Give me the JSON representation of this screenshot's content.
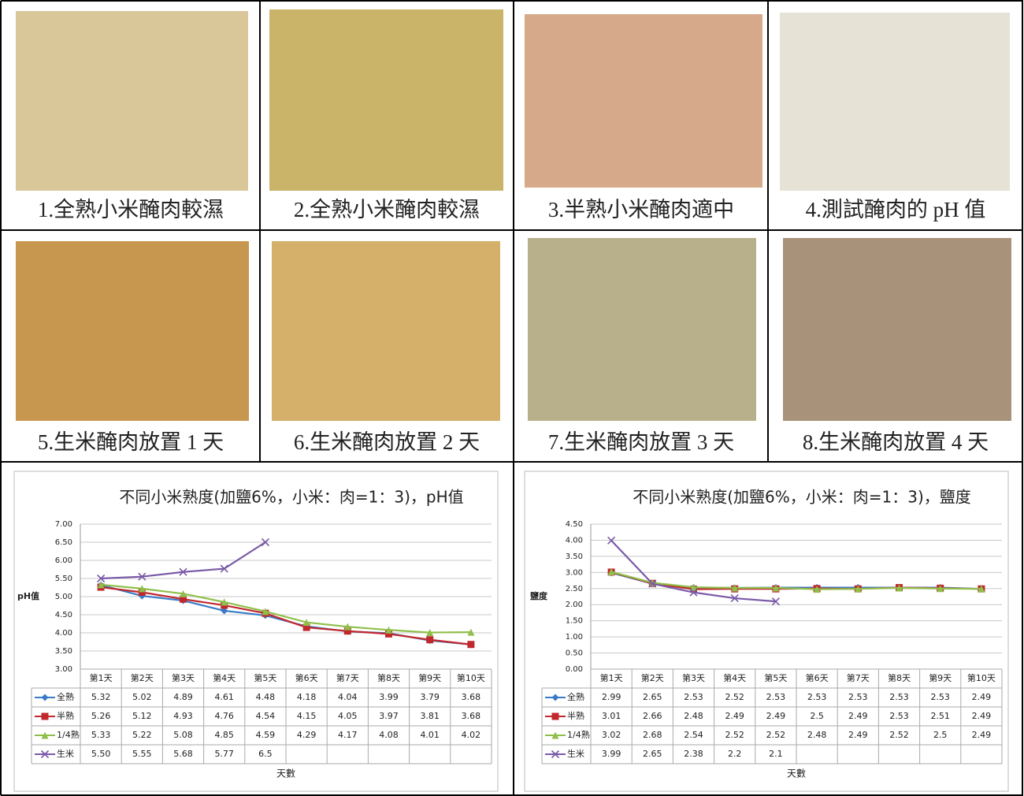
{
  "photos": [
    {
      "caption": "1.全熟小米醃肉較濕"
    },
    {
      "caption": "2.全熟小米醃肉較濕"
    },
    {
      "caption": "3.半熟小米醃肉適中"
    },
    {
      "caption": "4.測試醃肉的 pH 值"
    },
    {
      "caption": "5.生米醃肉放置 1 天"
    },
    {
      "caption": "6.生米醃肉放置 2 天"
    },
    {
      "caption": "7.生米醃肉放置 3 天"
    },
    {
      "caption": "8.生米醃肉放置 4 天"
    }
  ],
  "chart_data": [
    {
      "type": "line",
      "title": "不同小米熟度(加鹽6%，小米：肉=1：3)，pH值",
      "y_label": "pH值",
      "x_label": "天數",
      "categories": [
        "第1天",
        "第2天",
        "第3天",
        "第4天",
        "第5天",
        "第6天",
        "第7天",
        "第8天",
        "第9天",
        "第10天"
      ],
      "ylim": [
        3,
        7
      ],
      "yticks": [
        {
          "value": 3,
          "label": "3.00"
        },
        {
          "value": 3.5,
          "label": "3.50"
        },
        {
          "value": 4,
          "label": "4.00"
        },
        {
          "value": 4.5,
          "label": "4.50"
        },
        {
          "value": 5,
          "label": "5.00"
        },
        {
          "value": 5.5,
          "label": "5.50"
        },
        {
          "value": 6,
          "label": "6.00"
        },
        {
          "value": 6.5,
          "label": "6.50"
        },
        {
          "value": 7,
          "label": "7.00"
        }
      ],
      "grid": true,
      "series": [
        {
          "name": "全熟",
          "color": "#3a7bc8",
          "marker": "diamond",
          "values": [
            5.32,
            5.02,
            4.89,
            4.61,
            4.48,
            4.18,
            4.04,
            3.99,
            3.79,
            3.68
          ]
        },
        {
          "name": "半熟",
          "color": "#c0282d",
          "marker": "square",
          "values": [
            5.26,
            5.12,
            4.93,
            4.76,
            4.54,
            4.15,
            4.05,
            3.97,
            3.81,
            3.68
          ]
        },
        {
          "name": "1/4熟",
          "color": "#8fbf4a",
          "marker": "triangle",
          "values": [
            5.33,
            5.22,
            5.08,
            4.85,
            4.59,
            4.29,
            4.17,
            4.08,
            4.01,
            4.02
          ]
        },
        {
          "name": "生米",
          "color": "#7a5aa8",
          "marker": "x",
          "values": [
            5.5,
            5.55,
            5.68,
            5.77,
            6.5,
            null,
            null,
            null,
            null,
            null
          ],
          "value_labels": [
            "5.50",
            "5.55",
            "5.68",
            "5.77",
            "6.5",
            null,
            null,
            null,
            null,
            null
          ]
        }
      ]
    },
    {
      "type": "line",
      "title": "不同小米熟度(加鹽6%，小米：肉=1：3)，鹽度",
      "y_label": "鹽度",
      "x_label": "天數",
      "categories": [
        "第1天",
        "第2天",
        "第3天",
        "第4天",
        "第5天",
        "第6天",
        "第7天",
        "第8天",
        "第9天",
        "第10天"
      ],
      "ylim": [
        0,
        4.5
      ],
      "yticks": [
        {
          "value": 0,
          "label": "0.00"
        },
        {
          "value": 0.5,
          "label": "0.50"
        },
        {
          "value": 1,
          "label": "1.00"
        },
        {
          "value": 1.5,
          "label": "1.50"
        },
        {
          "value": 2,
          "label": "2.00"
        },
        {
          "value": 2.5,
          "label": "2.50"
        },
        {
          "value": 3,
          "label": "3.00"
        },
        {
          "value": 3.5,
          "label": "3.50"
        },
        {
          "value": 4,
          "label": "4.00"
        },
        {
          "value": 4.5,
          "label": "4.50"
        }
      ],
      "grid": true,
      "series": [
        {
          "name": "全熟",
          "color": "#3a7bc8",
          "marker": "diamond",
          "values": [
            2.99,
            2.65,
            2.53,
            2.52,
            2.53,
            2.53,
            2.53,
            2.53,
            2.53,
            2.49
          ]
        },
        {
          "name": "半熟",
          "color": "#c0282d",
          "marker": "square",
          "values": [
            3.01,
            2.66,
            2.48,
            2.49,
            2.49,
            2.5,
            2.49,
            2.53,
            2.51,
            2.49
          ]
        },
        {
          "name": "1/4熟",
          "color": "#8fbf4a",
          "marker": "triangle",
          "values": [
            3.02,
            2.68,
            2.54,
            2.52,
            2.52,
            2.48,
            2.49,
            2.52,
            2.5,
            2.49
          ]
        },
        {
          "name": "生米",
          "color": "#7a5aa8",
          "marker": "x",
          "values": [
            3.99,
            2.65,
            2.38,
            2.2,
            2.1,
            null,
            null,
            null,
            null,
            null
          ]
        }
      ]
    }
  ]
}
